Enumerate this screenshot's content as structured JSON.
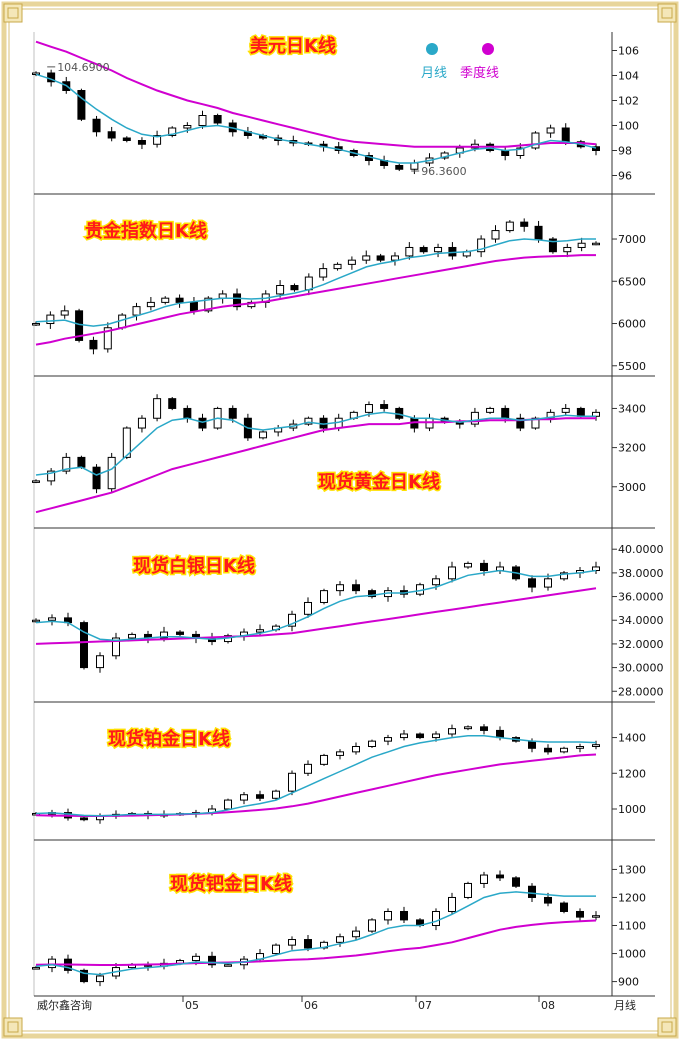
{
  "legend": {
    "items": [
      {
        "label": "月线",
        "color": "#2aa8c8"
      },
      {
        "label": "季度线",
        "color": "#d000d0"
      }
    ]
  },
  "footer": {
    "credit": "威尔鑫咨询",
    "months": [
      "05",
      "06",
      "07",
      "08"
    ],
    "period_label": "月线"
  },
  "colors": {
    "title_fill": "#ff1a1a",
    "title_stroke": "#ffe000",
    "monthly_ma": "#2aa8c8",
    "quarterly_ma": "#d000d0",
    "frame_gold": "#e8d59a"
  },
  "chart_data": [
    {
      "type": "candlestick",
      "title": "美元日K线",
      "ylim": [
        95,
        107
      ],
      "yticks": [
        96,
        98,
        100,
        102,
        104,
        106
      ],
      "tick_labels": [
        "96",
        "98",
        "100",
        "102",
        "104",
        "106"
      ],
      "annotations": [
        {
          "text": "104.6900",
          "x": 0.02,
          "y": 104.69
        },
        {
          "text": "96.3600",
          "x": 0.67,
          "y": 96.36
        }
      ],
      "close": [
        104.2,
        103.5,
        102.8,
        100.5,
        99.5,
        99.0,
        98.8,
        98.5,
        99.2,
        99.8,
        100.0,
        100.8,
        100.2,
        99.5,
        99.2,
        99.0,
        98.8,
        98.6,
        98.5,
        98.3,
        98.0,
        97.6,
        97.2,
        96.8,
        96.5,
        97.0,
        97.4,
        97.8,
        98.2,
        98.5,
        98.0,
        97.6,
        98.2,
        99.4,
        99.8,
        98.7,
        98.3,
        98.0
      ],
      "monthly_ma": [
        104.1,
        103.7,
        103.2,
        102.2,
        101.3,
        100.5,
        99.8,
        99.3,
        99.1,
        99.3,
        99.6,
        99.9,
        100.0,
        99.8,
        99.5,
        99.2,
        98.9,
        98.7,
        98.5,
        98.3,
        98.1,
        97.8,
        97.5,
        97.2,
        97.0,
        97.0,
        97.2,
        97.5,
        97.8,
        98.1,
        98.2,
        98.0,
        98.1,
        98.5,
        98.8,
        98.7,
        98.5,
        98.2
      ],
      "quarterly_ma": [
        106.7,
        106.3,
        105.9,
        105.4,
        104.9,
        104.4,
        103.8,
        103.3,
        102.8,
        102.4,
        102.0,
        101.7,
        101.4,
        101.0,
        100.7,
        100.4,
        100.1,
        99.8,
        99.5,
        99.2,
        98.9,
        98.7,
        98.6,
        98.5,
        98.4,
        98.3,
        98.3,
        98.3,
        98.3,
        98.3,
        98.3,
        98.3,
        98.4,
        98.5,
        98.6,
        98.6,
        98.6,
        98.5
      ]
    },
    {
      "type": "candlestick",
      "title": "贵金指数日K线",
      "ylim": [
        5450,
        7450
      ],
      "yticks": [
        5500,
        6000,
        6500,
        7000
      ],
      "tick_labels": [
        "5500",
        "6000",
        "6500",
        "7000"
      ],
      "close": [
        6000,
        6100,
        6150,
        5800,
        5700,
        5950,
        6100,
        6200,
        6250,
        6300,
        6250,
        6150,
        6300,
        6350,
        6200,
        6250,
        6350,
        6450,
        6400,
        6550,
        6650,
        6700,
        6750,
        6800,
        6750,
        6800,
        6900,
        6850,
        6900,
        6800,
        6850,
        7000,
        7100,
        7200,
        7150,
        7000,
        6850,
        6900,
        6950,
        6950
      ],
      "monthly_ma": [
        6020,
        6030,
        6040,
        5990,
        5970,
        5990,
        6040,
        6090,
        6140,
        6200,
        6240,
        6260,
        6280,
        6300,
        6300,
        6290,
        6300,
        6330,
        6360,
        6400,
        6460,
        6530,
        6600,
        6670,
        6710,
        6740,
        6780,
        6800,
        6830,
        6840,
        6850,
        6880,
        6930,
        6980,
        7000,
        6990,
        6970,
        6980,
        7000,
        7000
      ],
      "quarterly_ma": [
        5750,
        5780,
        5820,
        5850,
        5880,
        5910,
        5950,
        5990,
        6030,
        6070,
        6110,
        6140,
        6170,
        6200,
        6220,
        6240,
        6260,
        6290,
        6320,
        6350,
        6380,
        6410,
        6440,
        6470,
        6500,
        6530,
        6560,
        6590,
        6620,
        6650,
        6680,
        6710,
        6740,
        6760,
        6780,
        6790,
        6795,
        6800,
        6810,
        6810
      ]
    },
    {
      "type": "candlestick",
      "title": "现货黄金日K线",
      "ylim": [
        2820,
        3530
      ],
      "yticks": [
        3000,
        3200,
        3400
      ],
      "tick_labels": "3000|3200|3400",
      "close": [
        3030,
        3080,
        3150,
        3100,
        2990,
        3150,
        3300,
        3350,
        3450,
        3400,
        3350,
        3300,
        3400,
        3350,
        3250,
        3280,
        3300,
        3320,
        3350,
        3300,
        3350,
        3380,
        3420,
        3400,
        3350,
        3300,
        3350,
        3330,
        3320,
        3380,
        3400,
        3350,
        3300,
        3350,
        3380,
        3400,
        3360,
        3380
      ],
      "monthly_ma": [
        3060,
        3070,
        3090,
        3100,
        3060,
        3090,
        3160,
        3230,
        3300,
        3340,
        3350,
        3330,
        3350,
        3340,
        3300,
        3290,
        3300,
        3310,
        3330,
        3320,
        3330,
        3350,
        3370,
        3380,
        3370,
        3350,
        3350,
        3340,
        3330,
        3340,
        3350,
        3350,
        3340,
        3345,
        3355,
        3365,
        3360,
        3360
      ],
      "quarterly_ma": [
        2870,
        2890,
        2910,
        2930,
        2950,
        2970,
        3000,
        3030,
        3060,
        3090,
        3110,
        3130,
        3150,
        3170,
        3190,
        3210,
        3230,
        3250,
        3270,
        3290,
        3300,
        3310,
        3320,
        3320,
        3320,
        3330,
        3330,
        3330,
        3335,
        3335,
        3340,
        3340,
        3340,
        3345,
        3345,
        3350,
        3350,
        3350
      ]
    },
    {
      "type": "candlestick",
      "title": "现货白银日K线",
      "ylim": [
        27600,
        41200
      ],
      "yticks": [
        28000,
        30000,
        32000,
        34000,
        36000,
        38000,
        40000
      ],
      "tick_labels": [
        "28.0000",
        "30.0000",
        "32.0000",
        "34.0000",
        "36.0000",
        "38.0000",
        "40.0000"
      ],
      "close": [
        34000,
        34200,
        33800,
        30000,
        31000,
        32500,
        32800,
        32500,
        33000,
        32800,
        32500,
        32200,
        32700,
        33000,
        33200,
        33500,
        34500,
        35500,
        36500,
        37000,
        36500,
        36000,
        36500,
        36200,
        37000,
        37500,
        38500,
        38800,
        38200,
        38500,
        37500,
        36800,
        37500,
        38000,
        38200,
        38500
      ],
      "monthly_ma": [
        33800,
        33900,
        33800,
        33000,
        32400,
        32300,
        32400,
        32500,
        32600,
        32600,
        32500,
        32400,
        32500,
        32700,
        32900,
        33200,
        33700,
        34300,
        35000,
        35600,
        36000,
        36100,
        36300,
        36300,
        36500,
        36800,
        37300,
        37800,
        38000,
        38200,
        38000,
        37700,
        37700,
        37900,
        38000,
        38200
      ],
      "quarterly_ma": [
        32000,
        32050,
        32100,
        32150,
        32200,
        32250,
        32300,
        32350,
        32400,
        32450,
        32500,
        32550,
        32600,
        32650,
        32700,
        32800,
        32900,
        33100,
        33300,
        33500,
        33700,
        33900,
        34100,
        34300,
        34500,
        34700,
        34900,
        35100,
        35300,
        35500,
        35700,
        35900,
        36100,
        36300,
        36500,
        36700
      ]
    },
    {
      "type": "candlestick",
      "title": "现货铂金日K线",
      "ylim": [
        860,
        1560
      ],
      "yticks": [
        1000,
        1200,
        1400
      ],
      "tick_labels": [
        "1000",
        "1200",
        "1400"
      ],
      "close": [
        975,
        980,
        950,
        940,
        960,
        970,
        975,
        965,
        970,
        975,
        980,
        1000,
        1050,
        1080,
        1060,
        1100,
        1200,
        1250,
        1300,
        1320,
        1350,
        1380,
        1400,
        1420,
        1400,
        1420,
        1450,
        1460,
        1440,
        1400,
        1380,
        1340,
        1320,
        1340,
        1350,
        1360
      ],
      "monthly_ma": [
        975,
        978,
        972,
        964,
        962,
        965,
        970,
        970,
        970,
        972,
        974,
        980,
        995,
        1015,
        1030,
        1050,
        1090,
        1130,
        1170,
        1210,
        1250,
        1290,
        1320,
        1350,
        1370,
        1385,
        1400,
        1410,
        1410,
        1400,
        1390,
        1380,
        1375,
        1375,
        1375,
        1372
      ],
      "quarterly_ma": [
        965,
        963,
        962,
        961,
        961,
        962,
        963,
        965,
        967,
        970,
        973,
        977,
        982,
        988,
        995,
        1003,
        1015,
        1030,
        1050,
        1070,
        1090,
        1110,
        1130,
        1150,
        1170,
        1190,
        1205,
        1220,
        1235,
        1250,
        1260,
        1270,
        1280,
        1290,
        1300,
        1305
      ]
    },
    {
      "type": "candlestick",
      "title": "现货钯金日K线",
      "ylim": [
        870,
        1380
      ],
      "yticks": [
        900,
        1000,
        1100,
        1200,
        1300
      ],
      "tick_labels": [
        "900",
        "1000",
        "1100",
        "1200",
        "1300"
      ],
      "close": [
        950,
        980,
        940,
        900,
        920,
        950,
        960,
        955,
        965,
        975,
        990,
        960,
        960,
        980,
        1000,
        1030,
        1050,
        1020,
        1040,
        1060,
        1080,
        1120,
        1150,
        1120,
        1100,
        1150,
        1200,
        1250,
        1280,
        1270,
        1240,
        1200,
        1180,
        1150,
        1130,
        1135
      ],
      "monthly_ma": [
        955,
        960,
        950,
        930,
        925,
        935,
        945,
        950,
        955,
        962,
        970,
        968,
        965,
        970,
        980,
        995,
        1010,
        1015,
        1022,
        1035,
        1048,
        1068,
        1090,
        1100,
        1100,
        1115,
        1140,
        1170,
        1200,
        1215,
        1220,
        1215,
        1210,
        1205,
        1205,
        1205
      ],
      "quarterly_ma": [
        960,
        961,
        961,
        960,
        959,
        959,
        960,
        961,
        962,
        964,
        966,
        967,
        968,
        970,
        972,
        975,
        978,
        980,
        983,
        988,
        993,
        1000,
        1008,
        1015,
        1020,
        1030,
        1040,
        1055,
        1070,
        1085,
        1095,
        1102,
        1108,
        1112,
        1115,
        1118
      ]
    }
  ]
}
